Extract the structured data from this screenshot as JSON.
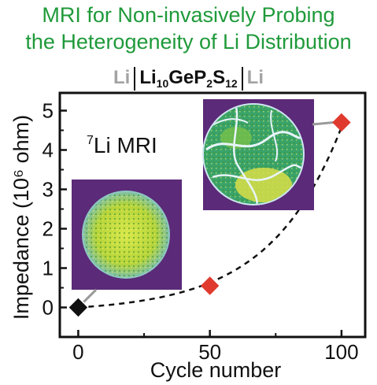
{
  "title": {
    "line1": "MRI for Non-invasively Probing",
    "line2": "the Heterogeneity of Li Distribution"
  },
  "cell": {
    "left_electrode": "Li",
    "electrolyte_main": "Li",
    "electrolyte_sub1": "10",
    "electrolyte_mid": "GeP",
    "electrolyte_sub2": "2",
    "electrolyte_tail": "S",
    "electrolyte_sub3": "12",
    "right_electrode": "Li"
  },
  "annotation": {
    "sup": "7",
    "text": "Li MRI"
  },
  "colors": {
    "title": "#1f9a3a",
    "electrode": "#a3a3a3",
    "marker_initial": "#111111",
    "marker_cycled": "#e03a2e",
    "image_background": "#5b2a78",
    "connector": "#9a9a9a"
  },
  "chart_data": {
    "type": "scatter",
    "xlabel": "Cycle number",
    "ylabel": "Impedance (10⁶ ohm)",
    "xlim": [
      -7,
      109
    ],
    "ylim": [
      -0.75,
      5.45
    ],
    "xticks": [
      0,
      50,
      100
    ],
    "yticks": [
      0,
      1,
      2,
      3,
      4,
      5
    ],
    "grid": false,
    "legend": "none",
    "marker": "diamond",
    "fit_line": "dashed exponential trend",
    "points": [
      {
        "x": 0,
        "y": 0.0,
        "color": "#111111"
      },
      {
        "x": 50,
        "y": 0.55,
        "color": "#e03a2e"
      },
      {
        "x": 100,
        "y": 4.7,
        "color": "#e03a2e"
      }
    ],
    "mri_images": [
      {
        "name": "mri-image-pristine",
        "attached_to_point": 0,
        "pattern": "uniform"
      },
      {
        "name": "mri-image-cycled",
        "attached_to_point": 2,
        "pattern": "heterogeneous"
      }
    ]
  }
}
